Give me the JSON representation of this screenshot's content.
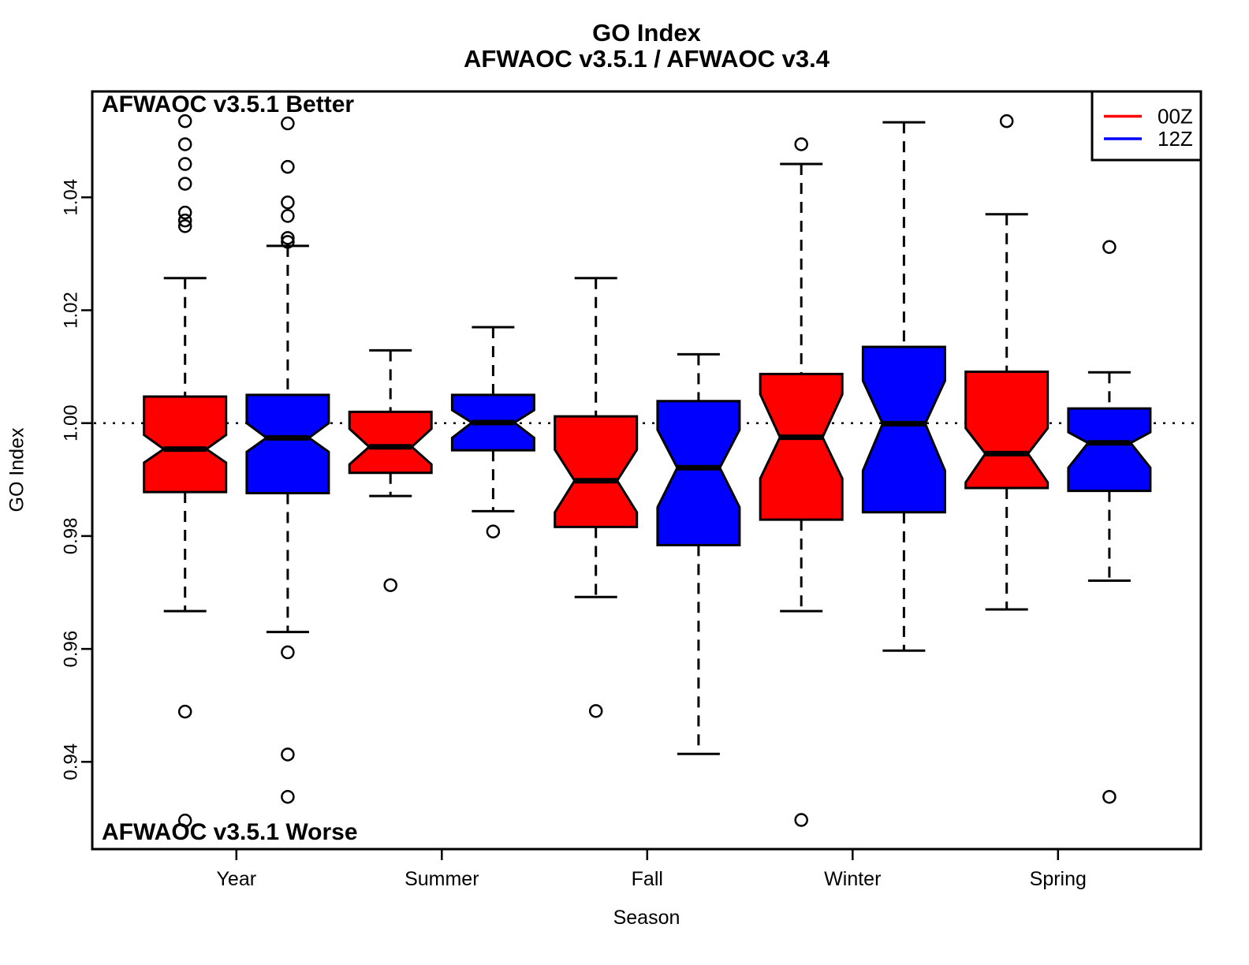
{
  "chart_data": {
    "type": "boxplot",
    "title": "GO Index",
    "subtitle": "AFWAOC v3.5.1 / AFWAOC v3.4",
    "xlabel": "Season",
    "ylabel": "GO Index",
    "ylim": [
      0.9245,
      1.0585
    ],
    "grid": false,
    "reference_line": 1.0,
    "annotations": {
      "better": "AFWAOC v3.5.1 Better",
      "worse": "AFWAOC v3.5.1 Worse"
    },
    "y_ticks": [
      {
        "value": 0.94,
        "label": "0.94"
      },
      {
        "value": 0.96,
        "label": "0.96"
      },
      {
        "value": 0.98,
        "label": "0.98"
      },
      {
        "value": 1.0,
        "label": "1.00"
      },
      {
        "value": 1.02,
        "label": "1.02"
      },
      {
        "value": 1.04,
        "label": "1.04"
      }
    ],
    "categories": [
      "Year",
      "Summer",
      "Fall",
      "Winter",
      "Spring"
    ],
    "series": [
      {
        "name": "00Z",
        "color": "#ff0000"
      },
      {
        "name": "12Z",
        "color": "#0000ff"
      }
    ],
    "legend": {
      "position": "top-right",
      "entries": [
        {
          "label": "00Z",
          "color": "#ff0000"
        },
        {
          "label": "12Z",
          "color": "#0000ff"
        }
      ]
    },
    "boxes": [
      {
        "season": "Year",
        "series": "00Z",
        "whisker_low": 0.9667,
        "q1": 0.9878,
        "notch_low": 0.993,
        "median": 0.9954,
        "notch_high": 0.9979,
        "q3": 1.0047,
        "whisker_high": 1.0257,
        "outliers": [
          1.0535,
          1.0494,
          1.0459,
          1.0424,
          1.0373,
          1.0359,
          1.0349,
          0.9489,
          0.9296
        ]
      },
      {
        "season": "Year",
        "series": "12Z",
        "whisker_low": 0.963,
        "q1": 0.9876,
        "notch_low": 0.9949,
        "median": 0.9974,
        "notch_high": 1.0,
        "q3": 1.005,
        "whisker_high": 1.0314,
        "outliers": [
          1.0531,
          1.0454,
          1.0391,
          1.0367,
          1.0328,
          1.0321,
          0.9594,
          0.9413,
          0.9338
        ]
      },
      {
        "season": "Summer",
        "series": "00Z",
        "whisker_low": 0.9871,
        "q1": 0.9912,
        "notch_low": 0.9927,
        "median": 0.9958,
        "notch_high": 0.999,
        "q3": 1.002,
        "whisker_high": 1.0129,
        "outliers": [
          0.9713
        ]
      },
      {
        "season": "Summer",
        "series": "12Z",
        "whisker_low": 0.9844,
        "q1": 0.9952,
        "notch_low": 0.9974,
        "median": 1.0001,
        "notch_high": 1.0023,
        "q3": 1.005,
        "whisker_high": 1.017,
        "outliers": [
          0.9808
        ]
      },
      {
        "season": "Fall",
        "series": "00Z",
        "whisker_low": 0.9692,
        "q1": 0.9816,
        "notch_low": 0.9842,
        "median": 0.9898,
        "notch_high": 0.9953,
        "q3": 1.0012,
        "whisker_high": 1.0257,
        "outliers": [
          0.949
        ]
      },
      {
        "season": "Fall",
        "series": "12Z",
        "whisker_low": 0.9414,
        "q1": 0.9784,
        "notch_low": 0.9851,
        "median": 0.9921,
        "notch_high": 0.9988,
        "q3": 1.0039,
        "whisker_high": 1.0122,
        "outliers": []
      },
      {
        "season": "Winter",
        "series": "00Z",
        "whisker_low": 0.9667,
        "q1": 0.9829,
        "notch_low": 0.9902,
        "median": 0.9975,
        "notch_high": 1.0051,
        "q3": 1.0087,
        "whisker_high": 1.0459,
        "outliers": [
          1.0494,
          0.9297
        ]
      },
      {
        "season": "Winter",
        "series": "12Z",
        "whisker_low": 0.9597,
        "q1": 0.9842,
        "notch_low": 0.9916,
        "median": 0.9999,
        "notch_high": 1.0075,
        "q3": 1.0135,
        "whisker_high": 1.0533,
        "outliers": []
      },
      {
        "season": "Spring",
        "series": "00Z",
        "whisker_low": 0.967,
        "q1": 0.9885,
        "notch_low": 0.9895,
        "median": 0.9946,
        "notch_high": 0.9991,
        "q3": 1.0091,
        "whisker_high": 1.037,
        "outliers": [
          1.0535
        ]
      },
      {
        "season": "Spring",
        "series": "12Z",
        "whisker_low": 0.9721,
        "q1": 0.988,
        "notch_low": 0.9921,
        "median": 0.9965,
        "notch_high": 0.9984,
        "q3": 1.0026,
        "whisker_high": 1.009,
        "outliers": [
          1.0312,
          0.9338
        ]
      }
    ]
  }
}
